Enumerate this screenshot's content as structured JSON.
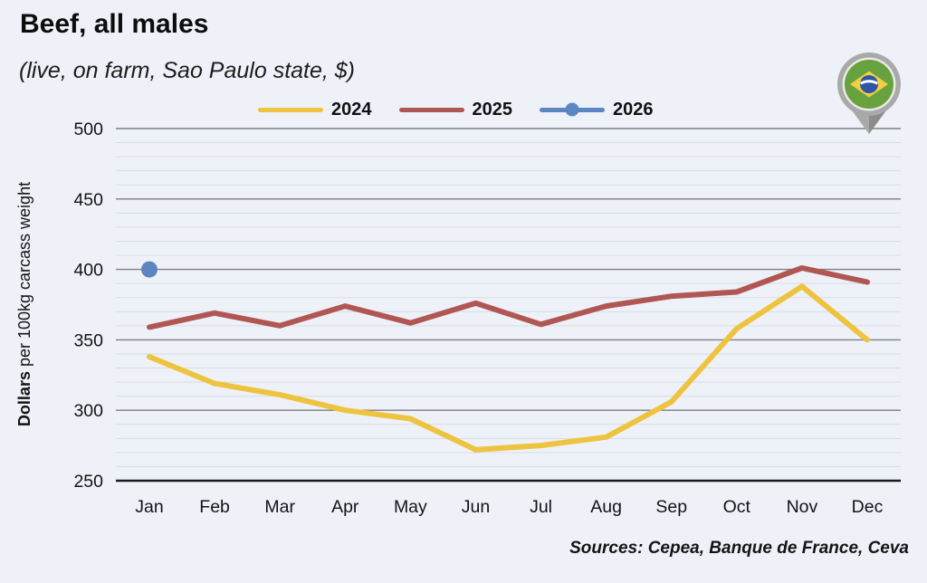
{
  "page": {
    "background": "#EEF2F8"
  },
  "header": {
    "title": "Beef, all males",
    "subtitle": "(live, on farm, Sao Paulo state, $)"
  },
  "footer": {
    "sources": "Sources: Cepea, Banque de France, Ceva"
  },
  "icon": {
    "name": "brazil-flag-map-pin",
    "pin_gray": "#A9A9A9",
    "pin_gray_dark": "#8C8C8C",
    "ring_light": "#E9E9E9",
    "flag_green": "#68A23E",
    "flag_yellow": "#F2CE45",
    "flag_blue": "#2F55A4",
    "band_white": "#FFFFFF"
  },
  "chart_data": {
    "type": "line",
    "title": "Beef, all males",
    "subtitle": "(live, on farm, Sao Paulo state, $)",
    "categories": [
      "Jan",
      "Feb",
      "Mar",
      "Apr",
      "May",
      "Jun",
      "Jul",
      "Aug",
      "Sep",
      "Oct",
      "Nov",
      "Dec"
    ],
    "series": [
      {
        "name": "2024",
        "color": "#EEC33F",
        "values": [
          338,
          319,
          311,
          300,
          294,
          272,
          275,
          281,
          306,
          358,
          388,
          350
        ]
      },
      {
        "name": "2025",
        "color": "#B05754",
        "values": [
          359,
          369,
          360,
          374,
          362,
          376,
          361,
          374,
          381,
          384,
          401,
          391
        ]
      },
      {
        "name": "2026",
        "color": "#5B86C0",
        "marker": "circle",
        "values": [
          400,
          null,
          null,
          null,
          null,
          null,
          null,
          null,
          null,
          null,
          null,
          null
        ]
      }
    ],
    "xlabel": "",
    "ylabel": "Dollars per 100kg carcass weight",
    "ylabel_bold_part": "Dollars",
    "ylim": [
      250,
      500
    ],
    "ytick_step": 50,
    "yminor_step": 10,
    "grid": "horizontal",
    "legend_position": "top",
    "axis_color": "#1A1A1A",
    "major_grid_color": "#7E7E7E",
    "minor_grid_color": "#D7DCE5"
  }
}
